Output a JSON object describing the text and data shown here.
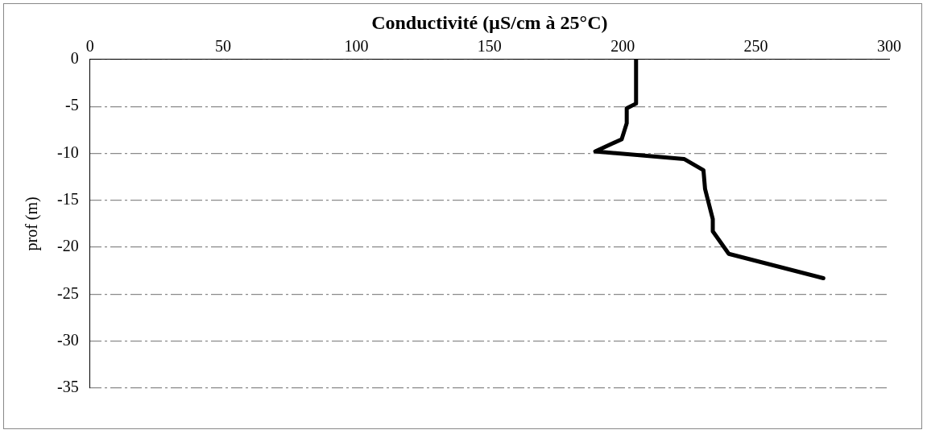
{
  "chart_data": {
    "type": "line",
    "xlabel": "Conductivité (µS/cm à 25°C)",
    "ylabel": "prof (m)",
    "x": [
      205,
      205,
      201.5,
      201.5,
      199.6,
      189.7,
      223,
      230.3,
      230.9,
      233.8,
      233.8,
      239.8,
      275.3
    ],
    "series": [
      {
        "color": "#000000",
        "values": [
          0,
          -4.7,
          -5.2,
          -6.8,
          -8.5,
          -9.8,
          -10.6,
          -11.8,
          -13.8,
          -17,
          -18.3,
          -20.7,
          -23.3
        ]
      }
    ],
    "xlim": [
      0,
      300
    ],
    "xticks": [
      0,
      50,
      100,
      150,
      200,
      250,
      300
    ],
    "ylim": [
      -35,
      0
    ],
    "yticks": [
      0,
      -5,
      -10,
      -15,
      -20,
      -25,
      -30,
      -35
    ],
    "grid": "y",
    "legend": false,
    "marker": "none",
    "line_style": "solid"
  }
}
